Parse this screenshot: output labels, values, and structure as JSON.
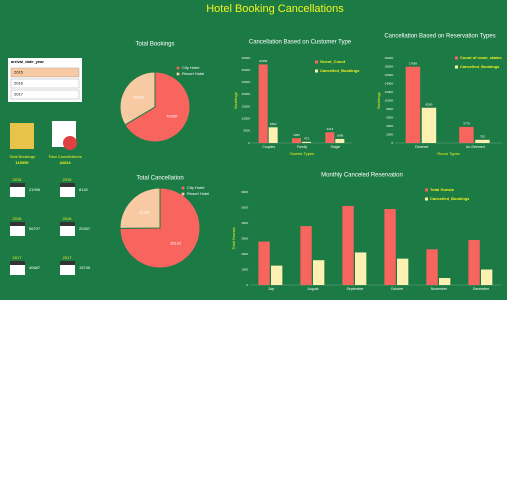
{
  "title": "Hotel Booking Cancellations",
  "slicer": {
    "header": "arrival_date_year",
    "items": [
      "2015",
      "2016",
      "2017"
    ]
  },
  "kpis": [
    {
      "label": "Total Bookings",
      "value": "119390"
    },
    {
      "label": "Total Cancellations",
      "value": "44224"
    }
  ],
  "year_tiles": [
    {
      "year": "2015",
      "value": "21996"
    },
    {
      "year": "2015",
      "value": "8142"
    },
    {
      "year": "2016",
      "value": "56707"
    },
    {
      "year": "2016",
      "value": "20337"
    },
    {
      "year": "2017",
      "value": "40687"
    },
    {
      "year": "2017",
      "value": "15745"
    }
  ],
  "chart_data": [
    {
      "type": "pie",
      "title": "Total Bookings",
      "categories": [
        "City Hotel",
        "Resort Hotel"
      ],
      "values": [
        79330,
        40060
      ],
      "colors": [
        "#f8655e",
        "#f7caa3"
      ]
    },
    {
      "type": "pie",
      "title": "Total Cancellation",
      "categories": [
        "City Hotel",
        "Resort Hotel"
      ],
      "values": [
        33102,
        11122
      ],
      "colors": [
        "#f8655e",
        "#f7caa3"
      ]
    },
    {
      "type": "bar",
      "title": "Cancellation Based on Customer Type",
      "categories": [
        "Couples",
        "Family",
        "Single"
      ],
      "series": [
        {
          "name": "Guest_Count",
          "color": "#f8655e",
          "values": [
            32356,
            1953,
            4413
          ]
        },
        {
          "name": "Cancelled_Bookings",
          "color": "#fdf0b0",
          "values": [
            6462,
            473,
            1669
          ]
        }
      ],
      "ylim": [
        0,
        35000
      ],
      "yticks": [
        0,
        5000,
        10000,
        15000,
        20000,
        25000,
        30000,
        35000
      ],
      "ylabel": "Bookings",
      "xlabel": "Guests Types",
      "data_labels": true
    },
    {
      "type": "bar",
      "title": "Cancellation Based on Reservation Types",
      "categories": [
        "Deemed",
        "Un-Deemed"
      ],
      "series": [
        {
          "name": "Count of room_status",
          "color": "#f8655e",
          "values": [
            17959,
            3779
          ]
        },
        {
          "name": "Cancelled_Bookings",
          "color": "#fdf0b0",
          "values": [
            8290,
            752
          ]
        }
      ],
      "ylim": [
        0,
        20000
      ],
      "yticks": [
        0,
        2000,
        4000,
        6000,
        8000,
        10000,
        12000,
        14000,
        16000,
        18000,
        20000
      ],
      "ylabel": "Bookings",
      "xlabel": "Room Types",
      "data_labels": true
    },
    {
      "type": "bar",
      "title": "Monthly Canceled Reservation",
      "categories": [
        "July",
        "August",
        "September",
        "October",
        "November",
        "December"
      ],
      "series": [
        {
          "name": "Total Guests",
          "color": "#f8655e",
          "values": [
            2800,
            3800,
            5100,
            4900,
            2300,
            2900
          ]
        },
        {
          "name": "Cancelled_Bookings",
          "color": "#fdf0b0",
          "values": [
            1250,
            1600,
            2100,
            1700,
            450,
            1000
          ]
        }
      ],
      "ylim": [
        0,
        6000
      ],
      "yticks": [
        0,
        1000,
        2000,
        3000,
        4000,
        5000,
        6000
      ],
      "ylabel": "Total Guests",
      "data_labels": false
    }
  ]
}
